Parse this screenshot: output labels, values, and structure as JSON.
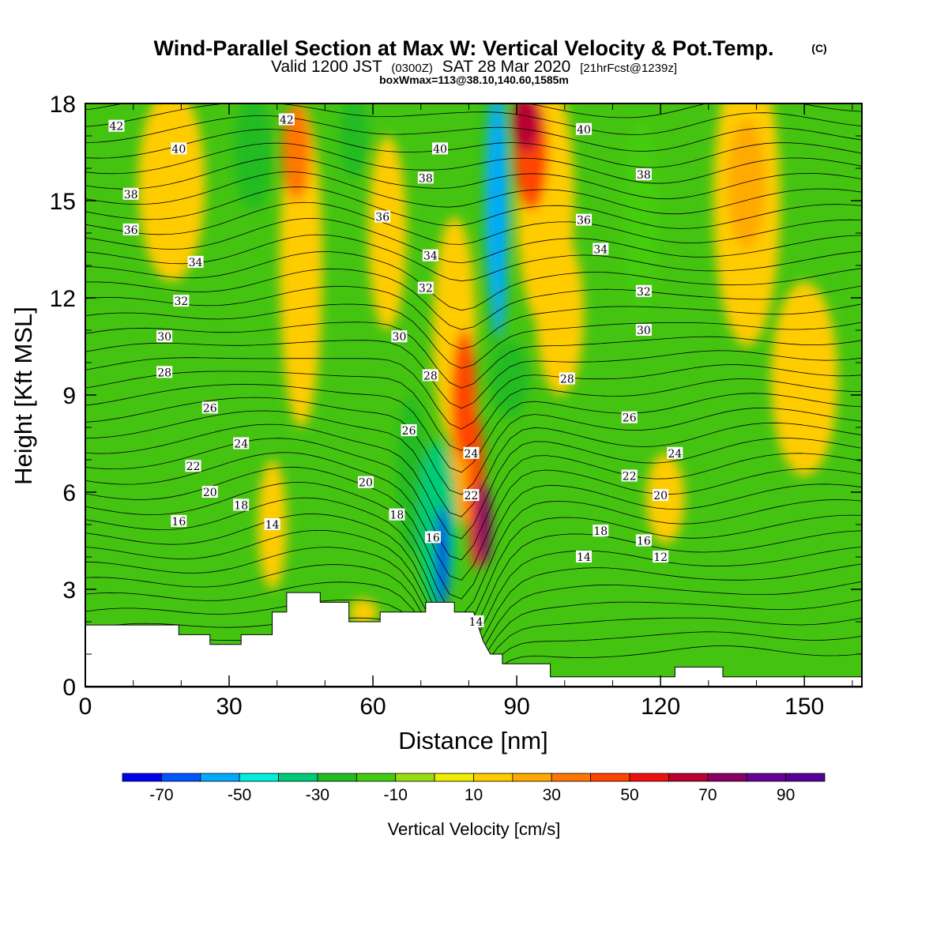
{
  "title": {
    "main": "Wind-Parallel Section at Max W: Vertical Velocity & Pot.Temp.",
    "copyright": "(C)",
    "valid_prefix": "Valid 1200 JST",
    "valid_utc": "(0300Z)",
    "valid_date": "SAT 28 Mar 2020",
    "forecast": "[21hrFcst@1239z]",
    "boxwmax": "boxWmax=113@38.10,140.60,1585m"
  },
  "chart_data": {
    "type": "heatmap",
    "xlabel": "Distance [nm]",
    "ylabel": "Height [Kft MSL]",
    "xlim": [
      0,
      162
    ],
    "ylim": [
      0,
      18
    ],
    "x_ticks": [
      "0",
      "30",
      "60",
      "90",
      "120",
      "150"
    ],
    "y_ticks": [
      "0",
      "3",
      "6",
      "9",
      "12",
      "15",
      "18"
    ],
    "colorbar": {
      "label": "Vertical Velocity [cm/s]",
      "range": [
        -80,
        100
      ],
      "tick_labels": [
        "-70",
        "-50",
        "-30",
        "-10",
        "10",
        "30",
        "50",
        "70",
        "90"
      ],
      "colors": [
        "#0000ee",
        "#0055ff",
        "#00aaff",
        "#00eedd",
        "#00cc77",
        "#22bb22",
        "#44cc11",
        "#99dd11",
        "#eeee00",
        "#ffcc00",
        "#ffaa00",
        "#ff7700",
        "#ff4400",
        "#ee1111",
        "#bb0033",
        "#880066",
        "#660099",
        "#550099"
      ],
      "background_color": "#44c411"
    },
    "terrain": [
      [
        0,
        1.9
      ],
      [
        19.5,
        1.9
      ],
      [
        19.5,
        1.6
      ],
      [
        26,
        1.6
      ],
      [
        26,
        1.3
      ],
      [
        32.5,
        1.3
      ],
      [
        32.5,
        1.6
      ],
      [
        39,
        1.6
      ],
      [
        39,
        2.3
      ],
      [
        42,
        2.3
      ],
      [
        42,
        2.9
      ],
      [
        49,
        2.9
      ],
      [
        49,
        2.6
      ],
      [
        55,
        2.6
      ],
      [
        55,
        2.0
      ],
      [
        61.5,
        2.0
      ],
      [
        61.5,
        2.3
      ],
      [
        71,
        2.3
      ],
      [
        71,
        2.6
      ],
      [
        77,
        2.6
      ],
      [
        77,
        2.3
      ],
      [
        81,
        2.3
      ],
      [
        83,
        1.4
      ],
      [
        84.5,
        1.0
      ],
      [
        87,
        1.0
      ],
      [
        87,
        0.7
      ],
      [
        97,
        0.7
      ],
      [
        97,
        0.3
      ],
      [
        123,
        0.3
      ],
      [
        123,
        0.6
      ],
      [
        133,
        0.6
      ],
      [
        133,
        0.3
      ],
      [
        162,
        0.3
      ]
    ],
    "w_features": [
      {
        "x": 74.5,
        "y": 4.0,
        "rx": 1.2,
        "ry": 1.6,
        "w": -75
      },
      {
        "x": 73.5,
        "y": 5.0,
        "rx": 4.0,
        "ry": 2.6,
        "w": -35
      },
      {
        "x": 86.0,
        "y": 15.0,
        "rx": 2.0,
        "ry": 3.2,
        "w": -55
      },
      {
        "x": 86.5,
        "y": 12.5,
        "rx": 1.2,
        "ry": 1.6,
        "w": -55
      },
      {
        "x": 85.5,
        "y": 15.0,
        "rx": 3.0,
        "ry": 4.5,
        "w": -25
      },
      {
        "x": 88.5,
        "y": 9.5,
        "rx": 4.0,
        "ry": 1.2,
        "w": -25
      },
      {
        "x": 35.0,
        "y": 16.5,
        "rx": 4.0,
        "ry": 1.8,
        "w": -25
      },
      {
        "x": 56.0,
        "y": 17.0,
        "rx": 3.0,
        "ry": 1.3,
        "w": -25
      },
      {
        "x": 83.0,
        "y": 5.0,
        "rx": 1.6,
        "ry": 1.3,
        "w": 70
      },
      {
        "x": 81.5,
        "y": 6.0,
        "rx": 1.8,
        "ry": 2.4,
        "w": 45
      },
      {
        "x": 79.0,
        "y": 9.0,
        "rx": 2.5,
        "ry": 2.0,
        "w": 45
      },
      {
        "x": 92.0,
        "y": 17.4,
        "rx": 3.0,
        "ry": 0.9,
        "w": 60
      },
      {
        "x": 93.0,
        "y": 16.5,
        "rx": 3.5,
        "ry": 1.8,
        "w": 40
      },
      {
        "x": 96.0,
        "y": 15.0,
        "rx": 6.0,
        "ry": 4.0,
        "w": 15
      },
      {
        "x": 99.0,
        "y": 11.5,
        "rx": 5.0,
        "ry": 2.5,
        "w": 15
      },
      {
        "x": 77.0,
        "y": 11.0,
        "rx": 4.5,
        "ry": 3.5,
        "w": 15
      },
      {
        "x": 79.0,
        "y": 8.0,
        "rx": 3.0,
        "ry": 3.0,
        "w": 25
      },
      {
        "x": 63.0,
        "y": 14.0,
        "rx": 4.0,
        "ry": 3.0,
        "w": 15
      },
      {
        "x": 45.0,
        "y": 13.0,
        "rx": 4.5,
        "ry": 5.0,
        "w": 15
      },
      {
        "x": 44.0,
        "y": 16.5,
        "rx": 3.0,
        "ry": 1.5,
        "w": 35
      },
      {
        "x": 18.0,
        "y": 15.5,
        "rx": 7.0,
        "ry": 3.0,
        "w": 15
      },
      {
        "x": 138.0,
        "y": 15.0,
        "rx": 7.0,
        "ry": 4.5,
        "w": 15
      },
      {
        "x": 138.0,
        "y": 15.5,
        "rx": 4.0,
        "ry": 2.0,
        "w": 25
      },
      {
        "x": 150.0,
        "y": 9.5,
        "rx": 7.0,
        "ry": 3.0,
        "w": 15
      },
      {
        "x": 121.0,
        "y": 5.8,
        "rx": 4.0,
        "ry": 1.4,
        "w": 15
      },
      {
        "x": 39.0,
        "y": 5.0,
        "rx": 3.0,
        "ry": 2.0,
        "w": 15
      },
      {
        "x": 58.0,
        "y": 2.3,
        "rx": 3.0,
        "ry": 0.4,
        "w": 15
      },
      {
        "x": 116.0,
        "y": 14.5,
        "rx": 4.0,
        "ry": 3.0,
        "w": -15
      },
      {
        "x": 68.0,
        "y": 6.5,
        "rx": 3.0,
        "ry": 2.5,
        "w": -25
      }
    ],
    "theta_levels": [
      12,
      14,
      16,
      18,
      20,
      22,
      24,
      26,
      28,
      30,
      32,
      34,
      36,
      38,
      40,
      42
    ],
    "contour_labels": [
      {
        "text": "42",
        "x": 6.5,
        "y": 17.3
      },
      {
        "text": "40",
        "x": 19.5,
        "y": 16.6
      },
      {
        "text": "38",
        "x": 9.5,
        "y": 15.2
      },
      {
        "text": "36",
        "x": 9.5,
        "y": 14.1
      },
      {
        "text": "34",
        "x": 23,
        "y": 13.1
      },
      {
        "text": "32",
        "x": 20,
        "y": 11.9
      },
      {
        "text": "30",
        "x": 16.5,
        "y": 10.8
      },
      {
        "text": "28",
        "x": 16.5,
        "y": 9.7
      },
      {
        "text": "26",
        "x": 26,
        "y": 8.6
      },
      {
        "text": "24",
        "x": 32.5,
        "y": 7.5
      },
      {
        "text": "22",
        "x": 22.5,
        "y": 6.8
      },
      {
        "text": "20",
        "x": 26,
        "y": 6.0
      },
      {
        "text": "18",
        "x": 32.5,
        "y": 5.6
      },
      {
        "text": "16",
        "x": 19.5,
        "y": 5.1
      },
      {
        "text": "14",
        "x": 39,
        "y": 5.0
      },
      {
        "text": "42",
        "x": 42,
        "y": 17.5
      },
      {
        "text": "40",
        "x": 74,
        "y": 16.6
      },
      {
        "text": "38",
        "x": 71,
        "y": 15.7
      },
      {
        "text": "36",
        "x": 62,
        "y": 14.5
      },
      {
        "text": "34",
        "x": 72,
        "y": 13.3
      },
      {
        "text": "32",
        "x": 71,
        "y": 12.3
      },
      {
        "text": "30",
        "x": 65.5,
        "y": 10.8
      },
      {
        "text": "28",
        "x": 72,
        "y": 9.6
      },
      {
        "text": "26",
        "x": 67.5,
        "y": 7.9
      },
      {
        "text": "20",
        "x": 58.5,
        "y": 6.3
      },
      {
        "text": "18",
        "x": 65,
        "y": 5.3
      },
      {
        "text": "16",
        "x": 72.5,
        "y": 4.6
      },
      {
        "text": "24",
        "x": 80.5,
        "y": 7.2
      },
      {
        "text": "22",
        "x": 80.5,
        "y": 5.9
      },
      {
        "text": "14",
        "x": 81.5,
        "y": 2.0
      },
      {
        "text": "40",
        "x": 104,
        "y": 17.2
      },
      {
        "text": "38",
        "x": 116.5,
        "y": 15.8
      },
      {
        "text": "36",
        "x": 104,
        "y": 14.4
      },
      {
        "text": "34",
        "x": 107.5,
        "y": 13.5
      },
      {
        "text": "32",
        "x": 116.5,
        "y": 12.2
      },
      {
        "text": "30",
        "x": 116.5,
        "y": 11.0
      },
      {
        "text": "28",
        "x": 100.5,
        "y": 9.5
      },
      {
        "text": "26",
        "x": 113.5,
        "y": 8.3
      },
      {
        "text": "24",
        "x": 123,
        "y": 7.2
      },
      {
        "text": "22",
        "x": 113.5,
        "y": 6.5
      },
      {
        "text": "20",
        "x": 120,
        "y": 5.9
      },
      {
        "text": "18",
        "x": 107.5,
        "y": 4.8
      },
      {
        "text": "16",
        "x": 116.5,
        "y": 4.5
      },
      {
        "text": "14",
        "x": 104,
        "y": 4.0
      },
      {
        "text": "12",
        "x": 120,
        "y": 4.0
      }
    ]
  }
}
